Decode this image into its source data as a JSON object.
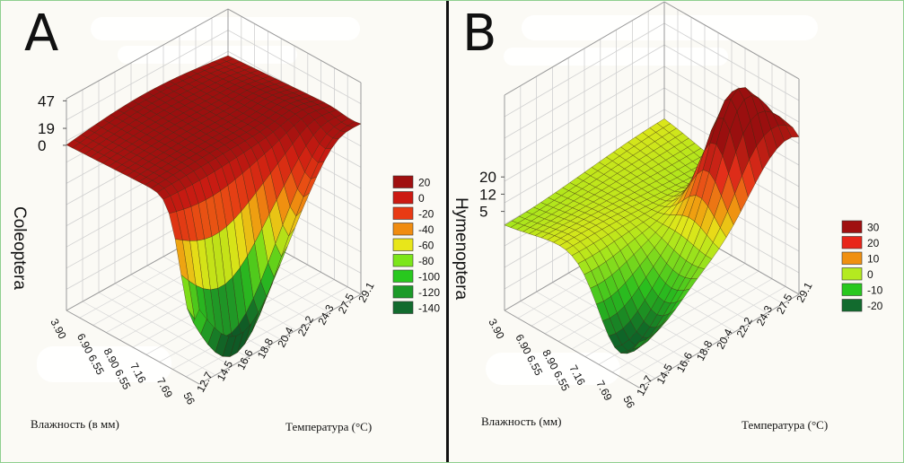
{
  "figure": {
    "panel_a_letter": "A",
    "panel_b_letter": "B"
  },
  "chart_data": [
    {
      "type": "surface3d",
      "panel": "A",
      "zlabel": "Coleoptera",
      "xlabel": "Влажность (в мм)",
      "ylabel": "Температура (°C)",
      "z_ticks": [
        "47",
        "19",
        "0"
      ],
      "x_ticks": [
        "56",
        "7.69",
        "7.16",
        "8.90 6.55",
        "6.90 6.55",
        "3.90"
      ],
      "y_ticks": [
        "12.7",
        "14.5",
        "16.6",
        "18.8",
        "20.4",
        "22.2",
        "24.3",
        "27.5",
        "29.1"
      ],
      "legend": [
        {
          "label": "20",
          "color": "#a01010"
        },
        {
          "label": "0",
          "color": "#cc1a12"
        },
        {
          "label": "-20",
          "color": "#e83a14"
        },
        {
          "label": "-40",
          "color": "#f08c10"
        },
        {
          "label": "-60",
          "color": "#e8e61a"
        },
        {
          "label": "-80",
          "color": "#7ce61a"
        },
        {
          "label": "-100",
          "color": "#28c81e"
        },
        {
          "label": "-120",
          "color": "#1c9a28"
        },
        {
          "label": "-140",
          "color": "#126b2e"
        }
      ]
    },
    {
      "type": "surface3d",
      "panel": "B",
      "zlabel": "Hymenoptera",
      "xlabel": "Влажность (мм)",
      "ylabel": "Температура (°C)",
      "z_ticks": [
        "20",
        "12",
        "5"
      ],
      "x_ticks": [
        "56",
        "7.69",
        "7.16",
        "8.90 6.55",
        "6.90 6.55",
        "3.90"
      ],
      "y_ticks": [
        "12.7",
        "14.5",
        "16.6",
        "18.8",
        "20.4",
        "22.2",
        "24.3",
        "27.5",
        "29.1"
      ],
      "legend": [
        {
          "label": "30",
          "color": "#a01010"
        },
        {
          "label": "20",
          "color": "#e8261a"
        },
        {
          "label": "10",
          "color": "#f09010"
        },
        {
          "label": "0",
          "color": "#b4ea20"
        },
        {
          "label": "-10",
          "color": "#28c81e"
        },
        {
          "label": "-20",
          "color": "#126b2e"
        }
      ]
    }
  ]
}
